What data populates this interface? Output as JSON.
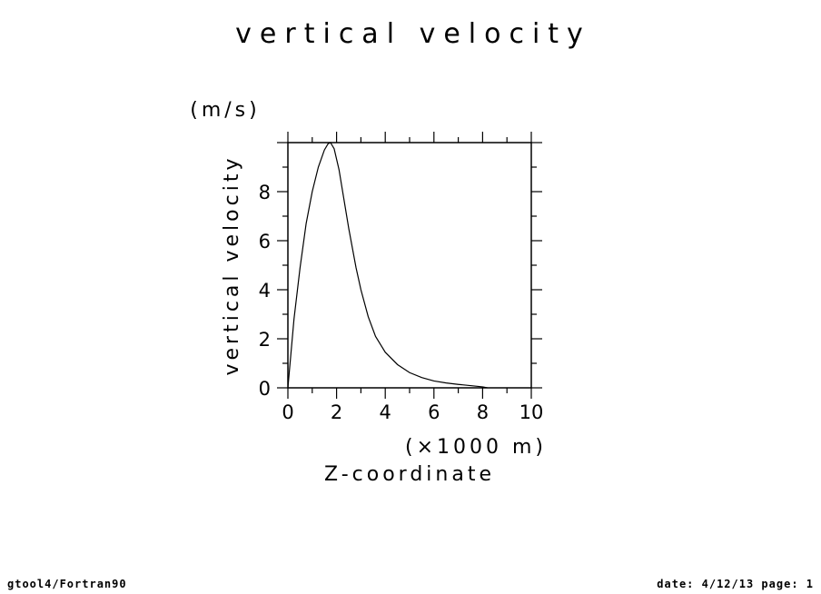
{
  "chart_data": {
    "type": "line",
    "title": "vertical velocity",
    "xlabel": "Z-coordinate",
    "xunit": "(×1000 m)",
    "ylabel": "vertical velocity",
    "yunit": "(m/s)",
    "xlim": [
      0,
      10
    ],
    "ylim": [
      0,
      10
    ],
    "x_ticks": [
      "0",
      "2",
      "4",
      "6",
      "8",
      "10"
    ],
    "y_ticks": [
      "0",
      "2",
      "4",
      "6",
      "8"
    ],
    "grid": false,
    "series": [
      {
        "x": [
          0,
          0.25,
          0.5,
          0.75,
          1.0,
          1.25,
          1.5,
          1.65,
          1.75,
          1.9,
          2.1,
          2.3,
          2.5,
          2.8,
          3.0,
          3.3,
          3.6,
          4.0,
          4.5,
          5.0,
          5.5,
          6.0,
          6.5,
          7.0,
          7.5,
          8.0,
          8.2
        ],
        "y": [
          0,
          2.8,
          4.9,
          6.7,
          8.0,
          9.0,
          9.7,
          9.95,
          10.0,
          9.75,
          8.9,
          7.7,
          6.5,
          4.9,
          4.0,
          2.9,
          2.1,
          1.45,
          0.95,
          0.62,
          0.42,
          0.28,
          0.2,
          0.14,
          0.09,
          0.04,
          0.0
        ]
      }
    ]
  },
  "footer": {
    "left": "gtool4/Fortran90",
    "right": "date: 4/12/13 page: 1"
  }
}
